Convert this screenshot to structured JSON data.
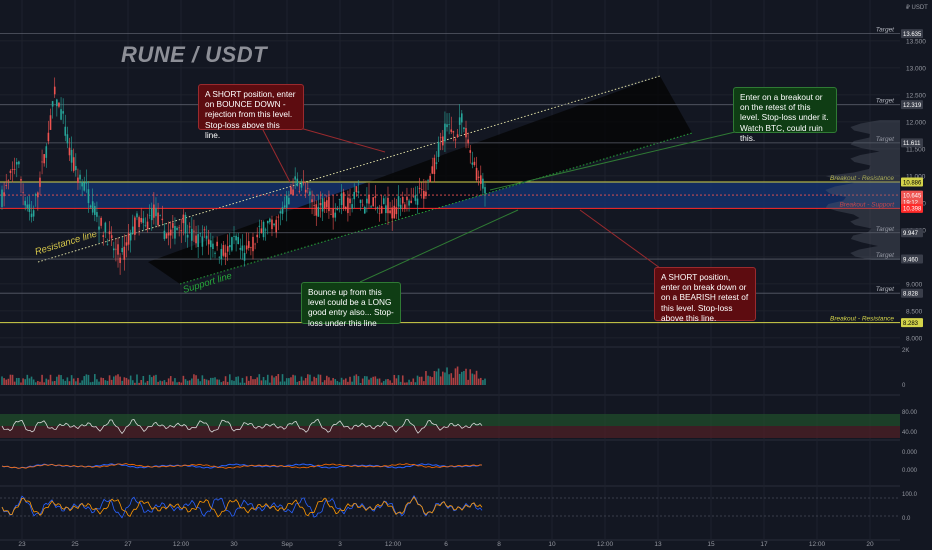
{
  "title": "RUNE / USDT",
  "currency": "USDT",
  "colors": {
    "background": "#131722",
    "grid": "#1e222d",
    "bull": "#26a69a",
    "bear": "#ef5350",
    "resistance_zone": "#14306a",
    "support_line": "#ff2a2a",
    "breakout_line": "#d4d44a",
    "channel_fill": "#050505",
    "annotation_red": "#5d0c10",
    "annotation_green": "#0f3d14"
  },
  "chart_data": {
    "type": "candlestick",
    "price_axis": {
      "ticks": [
        "13.500",
        "13.000",
        "12.500",
        "12.000",
        "11.500",
        "11.000",
        "10.500",
        "10.000",
        "9.500",
        "9.000",
        "8.500",
        "8.000"
      ],
      "range": [
        7.85,
        13.85
      ]
    },
    "time_axis": {
      "labels": [
        "23",
        "25",
        "27",
        "12:00",
        "30",
        "Sep",
        "3",
        "12:00",
        "6",
        "8",
        "10",
        "12:00",
        "13",
        "15",
        "17",
        "12:00",
        "20"
      ]
    },
    "price_badges": [
      {
        "value": "13.635",
        "label": "Target",
        "color": "#3a3e4a"
      },
      {
        "value": "12.319",
        "label": "Target",
        "color": "#3a3e4a"
      },
      {
        "value": "11.611",
        "label": "Target",
        "color": "#3a3e4a"
      },
      {
        "value": "10.886",
        "label": "Breakout - Resistance",
        "color": "#d4d44a",
        "text_color": "#000000"
      },
      {
        "value": "10.645",
        "label": "",
        "color": "#ef5350",
        "sub": "19:12"
      },
      {
        "value": "10.398",
        "label": "Breakout - Support",
        "color": "#ff2a2a"
      },
      {
        "value": "9.947",
        "label": "Target",
        "color": "#3a3e4a"
      },
      {
        "value": "9.460",
        "label": "Target",
        "color": "#3a3e4a"
      },
      {
        "value": "8.828",
        "label": "Target",
        "color": "#3a3e4a"
      },
      {
        "value": "8.283",
        "label": "Breakout - Resistance",
        "color": "#d4d44a",
        "text_color": "#000000"
      }
    ],
    "lines": {
      "channel_upper_label": "Resistance line",
      "channel_lower_label": "Support line"
    },
    "price_series_approx": [
      10.6,
      10.9,
      11.3,
      10.6,
      10.2,
      10.9,
      11.6,
      12.5,
      12.1,
      11.4,
      11.0,
      10.8,
      10.5,
      10.1,
      9.9,
      9.6,
      9.5,
      9.9,
      10.2,
      10.0,
      10.4,
      10.1,
      9.9,
      10.0,
      10.2,
      9.9,
      9.8,
      9.9,
      9.7,
      9.6,
      9.6,
      9.8,
      9.5,
      9.7,
      9.9,
      10.1,
      10.0,
      10.3,
      10.6,
      10.9,
      10.8,
      10.5,
      10.4,
      10.6,
      10.3,
      10.6,
      10.4,
      10.7,
      10.4,
      10.6,
      10.3,
      10.5,
      10.3,
      10.6,
      10.4,
      10.6,
      10.7,
      11.0,
      11.6,
      11.9,
      11.8,
      12.0,
      11.5,
      11.0,
      10.7
    ],
    "indicators": [
      {
        "name": "volume",
        "ticks": [
          "2K",
          "0"
        ]
      },
      {
        "name": "rsi",
        "ticks": [
          "80.00",
          "40.00"
        ]
      },
      {
        "name": "macd",
        "ticks": [
          "0.000",
          "0.000"
        ]
      },
      {
        "name": "stoch",
        "ticks": [
          "100.0",
          "0.0"
        ]
      }
    ]
  },
  "annotations": {
    "a1": "A SHORT position, enter on BOUNCE DOWN - rejection from this level. Stop-loss above this line.",
    "a2": "Enter on a breakout or on the retest of this level. Stop-loss under it. Watch BTC, could ruin this.",
    "a3": "Bounce up from this level could be a LONG good entry also... Stop-loss under this line",
    "a4": "A SHORT position, enter on break down or on a BEARISH retest of this level. Stop-loss above this line."
  }
}
